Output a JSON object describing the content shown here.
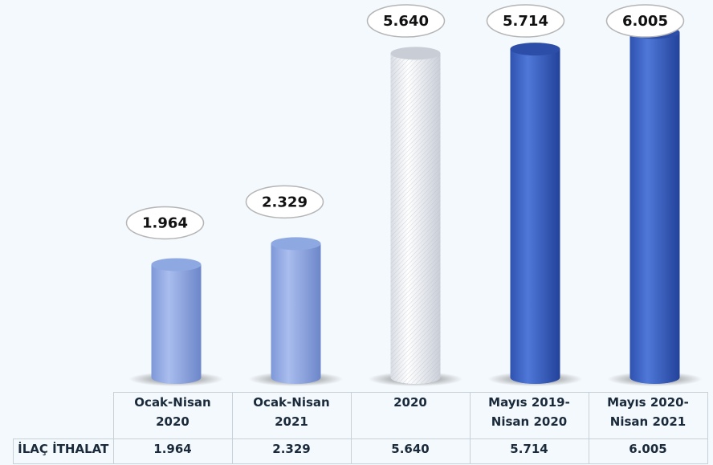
{
  "chart_data": {
    "type": "bar",
    "style": "3d-cylinder",
    "categories": [
      "Ocak-Nisan 2020",
      "Ocak-Nisan 2021",
      "2020",
      "Mayıs 2019-Nisan 2020",
      "Mayıs 2020-Nisan 2021"
    ],
    "category_lines": [
      [
        "Ocak-Nisan",
        "2020"
      ],
      [
        "Ocak-Nisan",
        "2021"
      ],
      [
        "2020",
        ""
      ],
      [
        "Mayıs 2019-",
        "Nisan 2020"
      ],
      [
        "Mayıs 2020-",
        "Nisan 2021"
      ]
    ],
    "series": [
      {
        "name": "İLAÇ İTHALAT",
        "values": [
          1.964,
          2.329,
          5.64,
          5.714,
          6.005
        ]
      }
    ],
    "data_labels": [
      "1.964",
      "2.329",
      "5.640",
      "5.714",
      "6.005"
    ],
    "bar_colors": [
      "#8da6e0",
      "#8da6e0",
      "#e8ecf2",
      "#3d62c4",
      "#3d62c4"
    ],
    "ylim": [
      0,
      6.4
    ],
    "grid": false,
    "legend": "none",
    "data_table": true
  }
}
